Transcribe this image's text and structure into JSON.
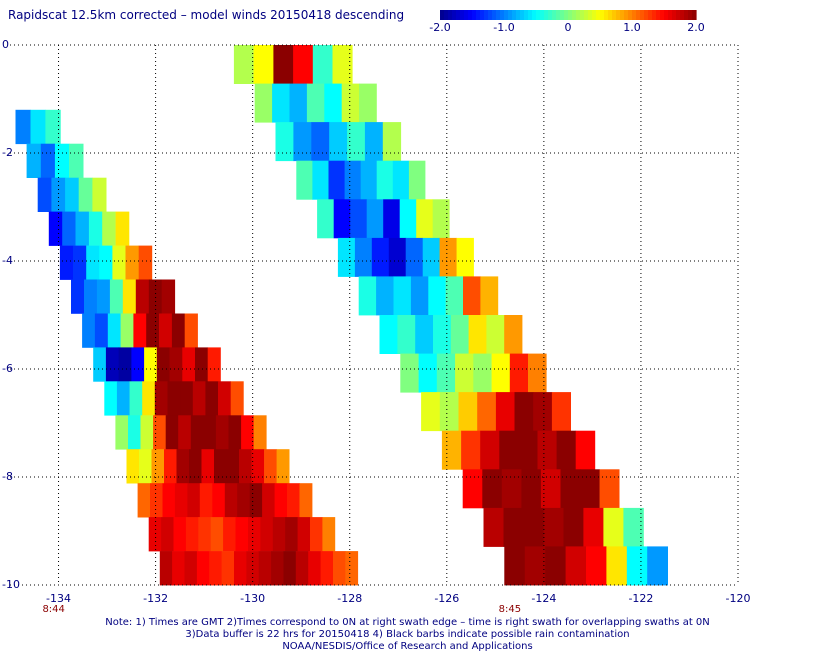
{
  "title": "Rapidscat 12.5km corrected – model winds 20150418 descending",
  "colorbar": {
    "min": -2.0,
    "max": 2.0,
    "ticks": [
      {
        "value": -2.0,
        "label": "-2.0"
      },
      {
        "value": -1.0,
        "label": "-1.0"
      },
      {
        "value": 0,
        "label": "0"
      },
      {
        "value": 1.0,
        "label": "1.0"
      },
      {
        "value": 2.0,
        "label": "2.0"
      }
    ],
    "colors": [
      "#00008b",
      "#0000ff",
      "#0080ff",
      "#00ffff",
      "#80ff80",
      "#ffff00",
      "#ff8000",
      "#ff0000",
      "#8b0000"
    ]
  },
  "chart_data": {
    "type": "heatmap",
    "xlim": [
      -135,
      -120
    ],
    "ylim": [
      -10,
      0
    ],
    "lat_ticks": [
      {
        "value": 0,
        "label": "0"
      },
      {
        "value": -2,
        "label": "-2"
      },
      {
        "value": -4,
        "label": "-4"
      },
      {
        "value": -6,
        "label": "-6"
      },
      {
        "value": -8,
        "label": "-8"
      },
      {
        "value": -10,
        "label": "-10"
      }
    ],
    "lon_ticks": [
      {
        "value": -134,
        "label": "-134"
      },
      {
        "value": -132,
        "label": "-132"
      },
      {
        "value": -130,
        "label": "-130"
      },
      {
        "value": -128,
        "label": "-128"
      },
      {
        "value": -126,
        "label": "-126"
      },
      {
        "value": -124,
        "label": "-124"
      },
      {
        "value": -122,
        "label": "-122"
      },
      {
        "value": -120,
        "label": "-120"
      }
    ],
    "time_labels": [
      {
        "lon": -134.1,
        "label": "8:44"
      },
      {
        "lon": -124.7,
        "label": "8:45"
      }
    ],
    "grid": true,
    "swaths": [
      {
        "top_left_lon": -135.0,
        "top_right_lon": -134.2,
        "top_lat": -1.2,
        "bottom_left_lon": -131.8,
        "bottom_right_lon": -127.6,
        "bottom_lat": -10.0,
        "rows": [
          [
            -1.0,
            -0.6,
            -0.3
          ],
          [
            -0.8,
            -1.1,
            -0.5,
            -0.2
          ],
          [
            -1.2,
            -0.9,
            -0.7,
            -0.1,
            0.3
          ],
          [
            -1.5,
            -1.1,
            -0.8,
            -0.4,
            0.2,
            0.6
          ],
          [
            -1.4,
            -1.3,
            -0.6,
            -0.5,
            0.4,
            0.9,
            1.2
          ],
          [
            -1.3,
            -1.0,
            -0.9,
            -0.2,
            0.6,
            1.8,
            2.0,
            1.9
          ],
          [
            -1.0,
            -1.2,
            -0.6,
            0.1,
            1.5,
            2.0,
            1.7,
            2.0,
            1.2
          ],
          [
            -0.7,
            -1.8,
            -1.9,
            -1.5,
            0.5,
            2.0,
            1.9,
            1.6,
            2.0,
            1.4
          ],
          [
            -0.5,
            -0.8,
            -0.3,
            0.6,
            1.9,
            2.0,
            2.0,
            1.8,
            2.0,
            1.7,
            1.2
          ],
          [
            0.1,
            -0.4,
            0.3,
            1.2,
            2.0,
            1.8,
            2.0,
            2.0,
            1.9,
            2.0,
            1.5,
            1.0
          ],
          [
            0.6,
            0.4,
            0.9,
            1.4,
            1.9,
            2.0,
            1.6,
            2.0,
            2.0,
            1.8,
            1.6,
            1.2,
            0.9
          ],
          [
            1.1,
            1.3,
            1.5,
            1.6,
            1.7,
            1.4,
            1.5,
            1.8,
            1.9,
            2.0,
            1.7,
            1.5,
            1.4,
            1.1
          ],
          [
            1.6,
            1.7,
            1.5,
            1.4,
            1.3,
            1.2,
            1.4,
            1.5,
            1.6,
            1.7,
            1.8,
            1.9,
            1.7,
            1.3,
            1.0
          ],
          [
            1.8,
            1.6,
            1.7,
            1.5,
            1.4,
            1.3,
            1.6,
            1.7,
            1.8,
            1.9,
            2.0,
            1.8,
            1.6,
            1.4,
            1.2,
            1.1
          ]
        ]
      },
      {
        "top_left_lon": -130.6,
        "top_right_lon": -128.2,
        "top_lat": 0.0,
        "bottom_left_lon": -124.6,
        "bottom_right_lon": -121.2,
        "bottom_lat": -10.0,
        "rows": [
          [
            0.2,
            0.5,
            2.0,
            1.5,
            -0.3,
            0.4
          ],
          [
            0.1,
            -0.6,
            -0.8,
            -0.2,
            -0.5,
            0.3,
            0.1
          ],
          [
            -0.4,
            -0.9,
            -1.1,
            -0.7,
            -0.3,
            -0.8,
            0.2
          ],
          [
            -0.2,
            -0.6,
            -1.3,
            -1.0,
            -0.8,
            -0.4,
            -0.6,
            0.0
          ],
          [
            -0.3,
            -1.5,
            -1.2,
            -0.9,
            -1.6,
            -0.5,
            0.4,
            0.2
          ],
          [
            -0.6,
            -1.0,
            -1.4,
            -1.7,
            -1.1,
            -0.7,
            0.9,
            0.5
          ],
          [
            -0.4,
            -0.8,
            -0.6,
            -0.9,
            -0.5,
            -0.2,
            1.2,
            0.8
          ],
          [
            -0.5,
            -0.3,
            -0.7,
            -0.4,
            -0.1,
            0.6,
            0.3,
            0.9
          ],
          [
            0.0,
            -0.5,
            -0.2,
            0.3,
            0.1,
            0.5,
            1.4,
            1.0
          ],
          [
            0.4,
            0.2,
            0.7,
            1.1,
            1.6,
            2.0,
            1.9,
            1.3
          ],
          [
            0.8,
            1.3,
            1.7,
            2.0,
            2.0,
            1.8,
            2.0,
            1.5
          ],
          [
            1.5,
            2.0,
            1.9,
            2.0,
            1.7,
            2.0,
            2.0,
            1.2
          ],
          [
            1.8,
            2.0,
            2.0,
            1.9,
            2.0,
            1.6,
            0.4,
            -0.2
          ],
          [
            2.0,
            1.9,
            2.0,
            1.7,
            1.5,
            0.6,
            -0.5,
            -0.9
          ]
        ]
      }
    ]
  },
  "notes": [
    "Note: 1) Times are GMT 2)Times correspond to 0N at right swath edge – time is right swath for overlapping swaths at 0N",
    "3)Data buffer is 22 hrs for 20150418 4) Black barbs indicate possible rain contamination",
    "NOAA/NESDIS/Office of Research and Applications"
  ]
}
